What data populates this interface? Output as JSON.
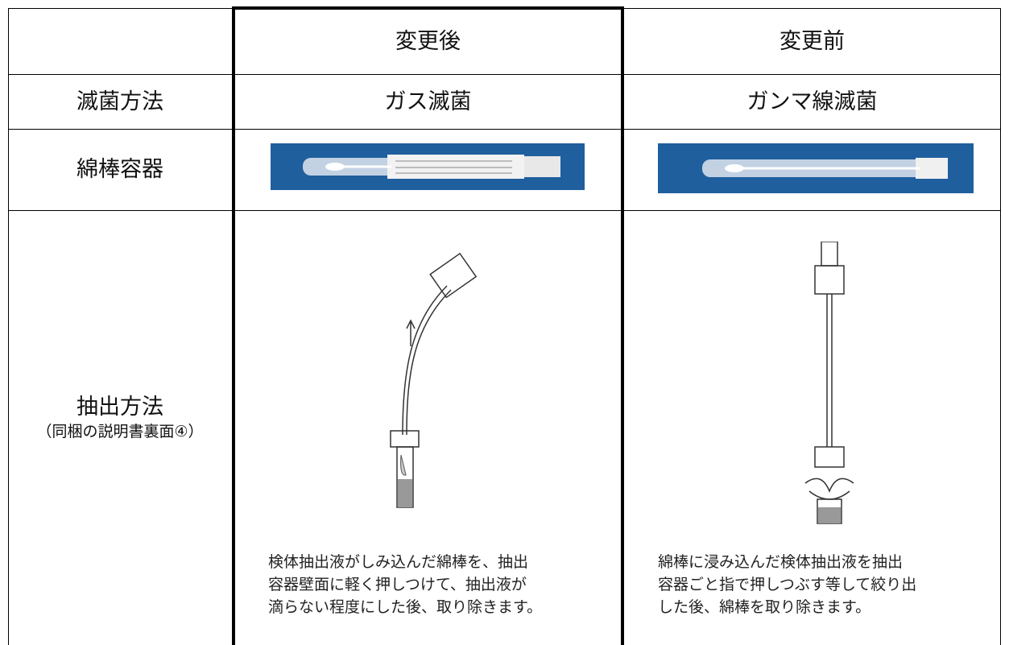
{
  "table": {
    "header": [
      "変更後",
      "変更前"
    ],
    "rows": [
      {
        "label": "滅菌方法",
        "cells": [
          "ガス滅菌",
          "ガンマ線滅菌"
        ]
      },
      {
        "label": "綿棒容器"
      },
      {
        "label": "抽出方法",
        "note": "（同梱の説明書裏面④）",
        "cells": [
          [
            "検体抽出液がしみ込んだ綿棒を、抽出",
            "容器壁面に軽く押しつけて、抽出液が",
            "滴らない程度にした後、取り除きます。"
          ],
          [
            "綿棒に浸み込んだ検体抽出液を抽出",
            "容器ごと指で押しつぶす等して絞り出",
            "した後、綿棒を取り除きます。"
          ]
        ]
      }
    ]
  }
}
